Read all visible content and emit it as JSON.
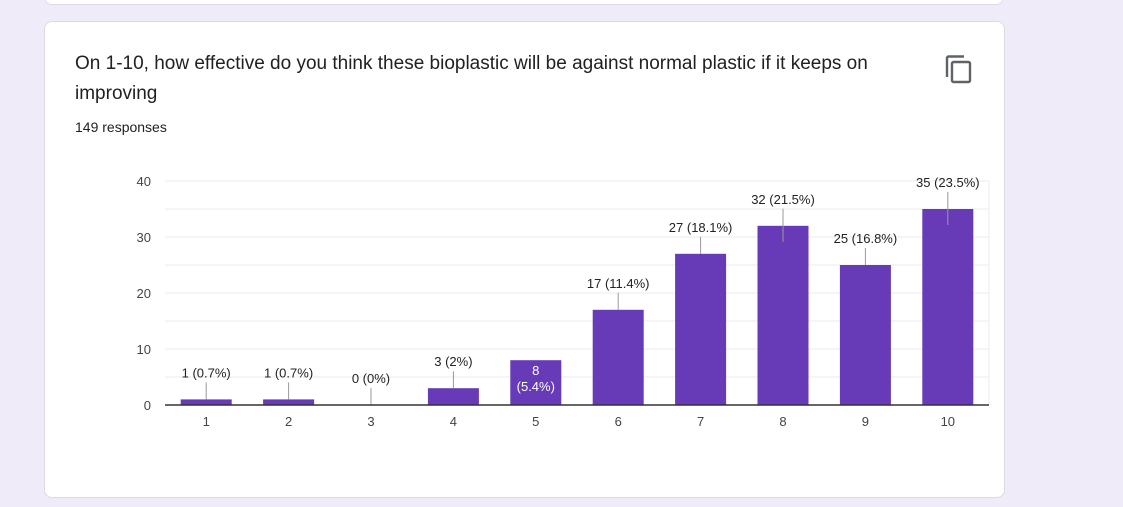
{
  "question": {
    "title": "On 1-10, how effective do you think these bioplastic will be against normal plastic if it keeps on improving",
    "responses": "149 responses",
    "copy_icon": "copy-icon"
  },
  "colors": {
    "bar": "#673ab7",
    "grid": "#ebebeb",
    "axis": "#333333",
    "text": "#222222"
  },
  "chart_data": {
    "type": "bar",
    "categories": [
      "1",
      "2",
      "3",
      "4",
      "5",
      "6",
      "7",
      "8",
      "9",
      "10"
    ],
    "values": [
      1,
      1,
      0,
      3,
      8,
      17,
      27,
      32,
      25,
      35
    ],
    "data_labels": [
      "1 (0.7%)",
      "1 (0.7%)",
      "0 (0%)",
      "3 (2%)",
      "8 (5.4%)",
      "17 (11.4%)",
      "27 (18.1%)",
      "32 (21.5%)",
      "25 (16.8%)",
      "35 (23.5%)"
    ],
    "yticks": [
      "0",
      "10",
      "20",
      "30",
      "40"
    ],
    "ylim": [
      0,
      40
    ],
    "grid": true,
    "title": "",
    "xlabel": "",
    "ylabel": ""
  }
}
